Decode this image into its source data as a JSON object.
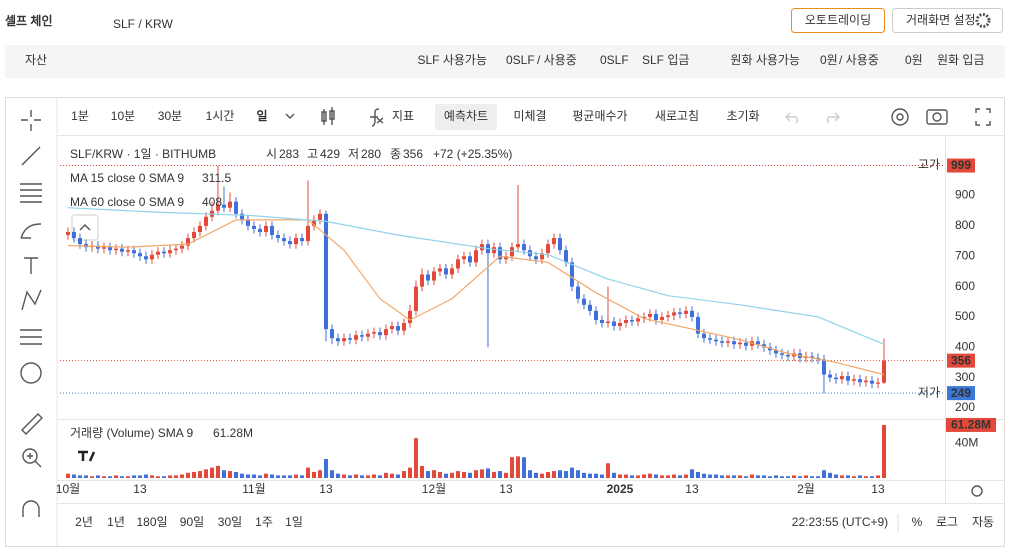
{
  "header": {
    "title": "셀프 체인",
    "pair": "SLF / KRW",
    "buttons": [
      "오토트레이딩",
      "거래화면 설정"
    ]
  },
  "balance": {
    "label": "자산",
    "items": [
      {
        "label": "SLF 사용가능",
        "available": "0SLF",
        "separator": "/ 사용중",
        "in_use": "0SLF",
        "action": "SLF 입금"
      },
      {
        "label": "원화 사용가능",
        "available": "0원",
        "separator": "/ 사용중",
        "in_use": "0원",
        "action": "원화 입금"
      }
    ]
  },
  "toolbar": {
    "intervals": [
      "1분",
      "10분",
      "30분",
      "1시간",
      "일"
    ],
    "buttons": [
      "지표",
      "예측차트",
      "미체결",
      "평균매수가",
      "새로고침",
      "초기화"
    ]
  },
  "chart_data": {
    "type": "candlestick",
    "title": "SLF/KRW · 1일 · BITHUMB",
    "ohlc": [
      {
        "label": "시",
        "value": 283
      },
      {
        "label": "고",
        "value": 429
      },
      {
        "label": "저",
        "value": 280
      },
      {
        "label": "종",
        "value": 356
      }
    ],
    "change": "+72 (+25.35%)",
    "up_color": "#e2493a",
    "down_color": "#3f6fd8",
    "open": [
      770,
      780,
      760,
      740,
      730,
      735,
      725,
      730,
      720,
      725,
      715,
      720,
      710,
      700,
      690,
      705,
      715,
      710,
      720,
      725,
      735,
      760,
      780,
      800,
      830,
      850,
      870,
      860,
      880,
      840,
      820,
      800,
      790,
      780,
      800,
      770,
      760,
      750,
      740,
      760,
      750,
      800,
      820,
      840,
      460,
      430,
      420,
      430,
      425,
      440,
      435,
      445,
      450,
      440,
      460,
      470,
      455,
      480,
      520,
      600,
      640,
      620,
      650,
      660,
      640,
      660,
      690,
      700,
      680,
      720,
      740,
      710,
      730,
      690,
      700,
      730,
      740,
      720,
      700,
      690,
      710,
      740,
      760,
      720,
      680,
      600,
      560,
      540,
      520,
      490,
      480,
      485,
      470,
      480,
      490,
      485,
      495,
      500,
      510,
      490,
      500,
      505,
      515,
      510,
      520,
      500,
      445,
      430,
      425,
      420,
      415,
      420,
      410,
      415,
      405,
      420,
      410,
      400,
      390,
      380,
      375,
      370,
      380,
      365,
      370,
      365,
      360,
      310,
      300,
      295,
      305,
      290,
      295,
      285,
      290,
      280,
      283
    ],
    "high": [
      795,
      795,
      775,
      755,
      750,
      750,
      745,
      745,
      740,
      740,
      735,
      735,
      725,
      715,
      720,
      730,
      730,
      735,
      740,
      750,
      775,
      795,
      815,
      845,
      880,
      999,
      930,
      910,
      895,
      855,
      835,
      815,
      805,
      815,
      815,
      785,
      775,
      765,
      775,
      775,
      950,
      835,
      855,
      850,
      475,
      445,
      445,
      445,
      455,
      455,
      460,
      465,
      465,
      475,
      485,
      485,
      495,
      540,
      620,
      660,
      655,
      665,
      675,
      675,
      675,
      705,
      715,
      715,
      735,
      755,
      755,
      745,
      745,
      715,
      745,
      935,
      755,
      735,
      715,
      725,
      755,
      775,
      775,
      735,
      695,
      615,
      575,
      555,
      535,
      505,
      600,
      500,
      495,
      505,
      505,
      510,
      515,
      525,
      525,
      515,
      520,
      530,
      530,
      535,
      535,
      515,
      460,
      445,
      440,
      435,
      435,
      435,
      430,
      430,
      435,
      435,
      425,
      415,
      405,
      395,
      390,
      395,
      395,
      385,
      385,
      380,
      375,
      325,
      315,
      320,
      320,
      310,
      310,
      305,
      305,
      299,
      429
    ],
    "low": [
      755,
      745,
      725,
      715,
      715,
      710,
      710,
      705,
      705,
      700,
      700,
      695,
      685,
      675,
      675,
      690,
      695,
      695,
      705,
      710,
      720,
      745,
      765,
      785,
      815,
      835,
      845,
      845,
      825,
      805,
      785,
      775,
      765,
      765,
      755,
      745,
      735,
      725,
      725,
      735,
      735,
      785,
      805,
      420,
      410,
      405,
      405,
      410,
      410,
      420,
      420,
      430,
      425,
      425,
      445,
      440,
      440,
      465,
      505,
      585,
      605,
      605,
      635,
      625,
      625,
      645,
      675,
      665,
      665,
      705,
      400,
      695,
      675,
      675,
      685,
      715,
      705,
      685,
      675,
      675,
      695,
      725,
      705,
      665,
      585,
      545,
      525,
      505,
      475,
      465,
      465,
      455,
      455,
      465,
      470,
      470,
      480,
      485,
      475,
      475,
      485,
      490,
      495,
      495,
      485,
      430,
      415,
      410,
      405,
      400,
      400,
      395,
      395,
      390,
      390,
      395,
      385,
      375,
      365,
      360,
      355,
      355,
      350,
      350,
      350,
      345,
      249,
      285,
      280,
      280,
      275,
      275,
      270,
      270,
      265,
      265,
      280
    ],
    "close": [
      780,
      760,
      740,
      730,
      735,
      725,
      730,
      720,
      725,
      715,
      720,
      710,
      700,
      690,
      705,
      715,
      710,
      720,
      725,
      735,
      760,
      780,
      800,
      830,
      850,
      870,
      860,
      880,
      840,
      820,
      800,
      790,
      780,
      800,
      770,
      760,
      750,
      740,
      760,
      750,
      800,
      820,
      840,
      460,
      430,
      420,
      430,
      425,
      440,
      435,
      445,
      450,
      440,
      460,
      470,
      455,
      480,
      520,
      600,
      640,
      620,
      650,
      660,
      640,
      660,
      690,
      700,
      680,
      720,
      740,
      710,
      730,
      690,
      700,
      730,
      740,
      720,
      700,
      690,
      710,
      740,
      760,
      720,
      680,
      600,
      560,
      540,
      520,
      490,
      480,
      485,
      470,
      480,
      490,
      485,
      495,
      500,
      510,
      490,
      500,
      505,
      515,
      510,
      520,
      500,
      445,
      430,
      425,
      420,
      415,
      420,
      410,
      415,
      405,
      420,
      410,
      400,
      390,
      380,
      375,
      370,
      380,
      365,
      370,
      365,
      360,
      310,
      300,
      295,
      305,
      290,
      295,
      285,
      290,
      280,
      284,
      356
    ],
    "xlim": [
      -1.33,
      146.17
    ],
    "xticks": [
      {
        "value": 0,
        "label": "10월"
      },
      {
        "value": 12,
        "label": "13"
      },
      {
        "value": 31,
        "label": "11월"
      },
      {
        "value": 43,
        "label": "13"
      },
      {
        "value": 61,
        "label": "12월"
      },
      {
        "value": 73,
        "label": "13"
      },
      {
        "value": 92,
        "label": "2025"
      },
      {
        "value": 104,
        "label": "13"
      },
      {
        "value": 123,
        "label": "2월"
      },
      {
        "value": 135,
        "label": "13"
      }
    ],
    "ylim": [
      167,
      1093
    ],
    "yticks": [
      200,
      300,
      400,
      500,
      600,
      700,
      800,
      900
    ],
    "moving_averages": [
      {
        "name": "MA 15 close 0 SMA 9",
        "value_label": "311.5",
        "color": "#f2a86a",
        "x": [
          0,
          10,
          20,
          28,
          40,
          46,
          52,
          57,
          64,
          72,
          80,
          88,
          96,
          104,
          112,
          120,
          128,
          136
        ],
        "values": [
          735,
          730,
          740,
          820,
          820,
          720,
          560,
          490,
          560,
          700,
          680,
          580,
          495,
          460,
          425,
          380,
          350,
          310
        ]
      },
      {
        "name": "MA 60 close 0 SMA 9",
        "value_label": "408",
        "color": "#8fd3ea",
        "x": [
          0,
          15,
          30,
          43,
          55,
          70,
          80,
          90,
          100,
          112,
          125,
          136
        ],
        "values": [
          860,
          845,
          835,
          815,
          770,
          725,
          705,
          625,
          570,
          540,
          500,
          410
        ]
      }
    ],
    "price_lines": [
      {
        "label": "고가",
        "value": 999,
        "color": "#e2493a"
      },
      {
        "value": 356,
        "color": "#e2493a"
      },
      {
        "label": "저가",
        "value": 249,
        "color": "#3a78d8"
      }
    ],
    "volume": {
      "title": "거래량 (Volume) SMA 9",
      "value_label": "61.28M",
      "ylim": [
        0,
        67
      ],
      "yticks": [
        {
          "value": 40,
          "label": "40M"
        }
      ],
      "values": [
        5,
        4,
        3,
        3,
        2,
        3,
        2,
        2,
        3,
        2,
        2,
        3,
        3,
        4,
        3,
        2,
        2,
        3,
        3,
        4,
        6,
        7,
        8,
        10,
        12,
        14,
        9,
        8,
        7,
        5,
        4,
        4,
        3,
        5,
        4,
        3,
        3,
        3,
        4,
        3,
        12,
        7,
        9,
        22,
        9,
        5,
        4,
        3,
        4,
        3,
        3,
        4,
        3,
        6,
        5,
        4,
        8,
        12,
        46,
        14,
        8,
        9,
        7,
        5,
        6,
        8,
        7,
        6,
        9,
        10,
        11,
        7,
        8,
        6,
        24,
        25,
        24,
        9,
        6,
        5,
        7,
        8,
        9,
        8,
        12,
        9,
        6,
        5,
        5,
        4,
        17,
        6,
        4,
        4,
        3,
        3,
        4,
        5,
        4,
        3,
        3,
        4,
        3,
        4,
        10,
        7,
        5,
        4,
        4,
        3,
        3,
        3,
        3,
        2,
        4,
        3,
        3,
        2,
        3,
        2,
        2,
        3,
        2,
        3,
        2,
        2,
        9,
        6,
        4,
        3,
        3,
        2,
        3,
        2,
        2,
        3,
        61.28
      ]
    }
  },
  "footer": {
    "ranges": [
      "2년",
      "1년",
      "180일",
      "90일",
      "30일",
      "1주",
      "1일"
    ],
    "time": "22:23:55 (UTC+9)",
    "options": [
      "%",
      "로그",
      "자동"
    ]
  }
}
